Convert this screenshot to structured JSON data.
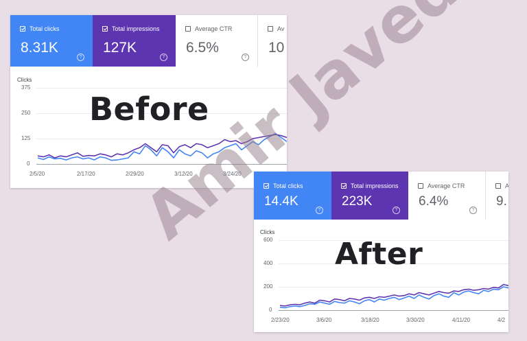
{
  "watermark": "Amir Javed",
  "before": {
    "heading": "Before",
    "metrics": [
      {
        "label": "Total clicks",
        "value": "8.31K",
        "checked": true
      },
      {
        "label": "Total impressions",
        "value": "127K",
        "checked": true
      },
      {
        "label": "Average CTR",
        "value": "6.5%",
        "checked": false
      },
      {
        "label": "Av",
        "value": "10",
        "checked": false
      }
    ],
    "help_icon": "?",
    "chart_data": {
      "type": "line",
      "ylabel": "Clicks",
      "ylim": [
        0,
        375
      ],
      "yticks": [
        "375",
        "250",
        "125",
        "0"
      ],
      "xticks": [
        "2/5/20",
        "2/17/20",
        "2/29/20",
        "3/12/20",
        "3/24/20"
      ],
      "series": [
        {
          "color": "#4285f4",
          "values": [
            30,
            22,
            35,
            25,
            28,
            20,
            30,
            35,
            25,
            30,
            20,
            35,
            30,
            18,
            20,
            25,
            30,
            60,
            50,
            90,
            70,
            40,
            80,
            60,
            30,
            70,
            50,
            40,
            65,
            55,
            30,
            50,
            60,
            80,
            90,
            100,
            70,
            90,
            110,
            95,
            120,
            135,
            150,
            130,
            110
          ]
        },
        {
          "color": "#5e35b1",
          "values": [
            40,
            35,
            45,
            30,
            40,
            35,
            45,
            55,
            38,
            42,
            40,
            50,
            45,
            35,
            50,
            45,
            55,
            70,
            80,
            100,
            80,
            60,
            95,
            90,
            55,
            85,
            95,
            80,
            100,
            95,
            80,
            90,
            100,
            120,
            110,
            115,
            100,
            110,
            125,
            130,
            135,
            140,
            145,
            140,
            130
          ]
        }
      ]
    }
  },
  "after": {
    "heading": "After",
    "metrics": [
      {
        "label": "Total clicks",
        "value": "14.4K",
        "checked": true
      },
      {
        "label": "Total impressions",
        "value": "223K",
        "checked": true
      },
      {
        "label": "Average CTR",
        "value": "6.4%",
        "checked": false
      },
      {
        "label": "A",
        "value": "9.",
        "checked": false
      }
    ],
    "help_icon": "?",
    "chart_data": {
      "type": "line",
      "ylabel": "Clicks",
      "ylim": [
        0,
        600
      ],
      "yticks": [
        "600",
        "400",
        "200",
        "0"
      ],
      "xticks": [
        "2/23/20",
        "3/6/20",
        "3/18/20",
        "3/30/20",
        "4/11/20",
        "4/2"
      ],
      "series": [
        {
          "color": "#4285f4",
          "values": [
            25,
            20,
            30,
            35,
            30,
            40,
            55,
            50,
            70,
            60,
            50,
            75,
            65,
            60,
            80,
            70,
            55,
            80,
            90,
            70,
            95,
            85,
            100,
            110,
            90,
            105,
            120,
            100,
            130,
            110,
            95,
            125,
            140,
            120,
            110,
            150,
            130,
            155,
            165,
            150,
            140,
            170,
            160,
            180,
            175,
            200,
            190
          ]
        },
        {
          "color": "#5e35b1",
          "values": [
            40,
            35,
            45,
            50,
            45,
            60,
            70,
            60,
            85,
            80,
            70,
            95,
            90,
            80,
            100,
            95,
            85,
            105,
            110,
            100,
            115,
            110,
            120,
            130,
            120,
            125,
            140,
            130,
            150,
            140,
            130,
            145,
            160,
            150,
            145,
            165,
            160,
            175,
            180,
            170,
            175,
            185,
            180,
            195,
            190,
            220,
            210
          ]
        }
      ]
    }
  }
}
